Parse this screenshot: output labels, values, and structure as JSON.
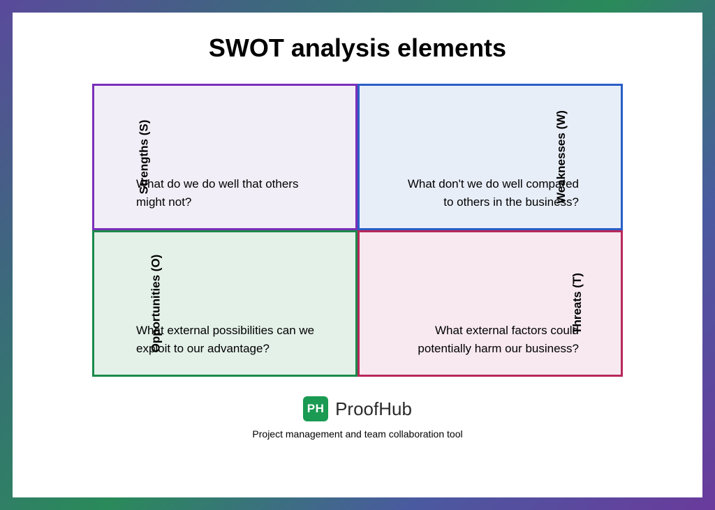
{
  "title": "SWOT analysis elements",
  "swot": {
    "type": "quadrant-diagram",
    "layout": "2x2",
    "quadrants": [
      {
        "key": "strengths",
        "label": "Strengths (S)",
        "text": "What do we do well that others might not?",
        "border_color": "#7a2fb8",
        "background_color": "#f2eef7",
        "label_side": "left",
        "text_align": "left"
      },
      {
        "key": "weaknesses",
        "label": "Weaknesses (W)",
        "text": "What don't we do well compared to others in the business?",
        "border_color": "#2a5ec7",
        "background_color": "#e8eef8",
        "label_side": "right",
        "text_align": "right"
      },
      {
        "key": "opportunities",
        "label": "Opportunities (O)",
        "text": " What external possibilities can we exploit to our advantage?",
        "border_color": "#1a8a4a",
        "background_color": "#e4f1e9",
        "label_side": "left",
        "text_align": "left"
      },
      {
        "key": "threats",
        "label": "Threats (T)",
        "text": "What external factors could potentially harm our business?",
        "border_color": "#b8285a",
        "background_color": "#f7e9ef",
        "label_side": "right",
        "text_align": "right"
      }
    ],
    "border_width": 3,
    "text_color": "#000000",
    "label_fontsize": 17,
    "text_fontsize": 17
  },
  "brand": {
    "icon_text": "PH",
    "icon_bg": "#1a9a52",
    "name": "ProofHub",
    "tagline": "Project management and team collaboration tool"
  },
  "page_bg_gradient": [
    "#5a4a9c",
    "#3a6b7a",
    "#2a8a5a",
    "#4a5aa0",
    "#6a3a9c"
  ],
  "content_bg": "#ffffff"
}
